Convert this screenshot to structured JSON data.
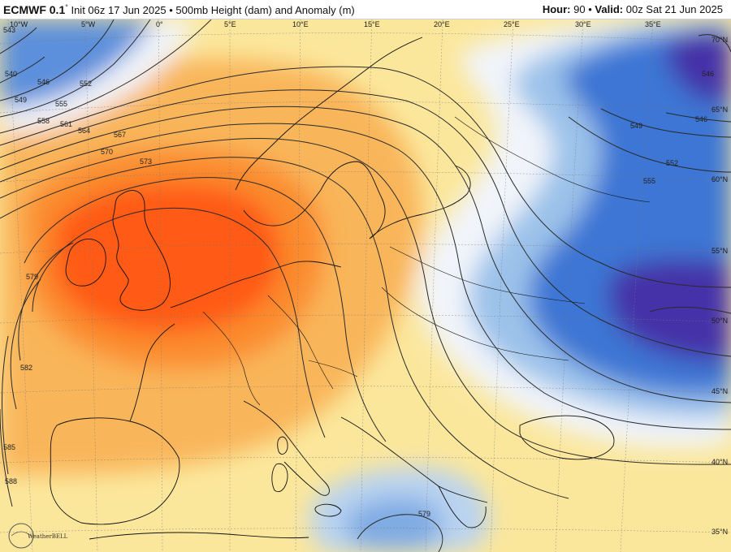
{
  "header": {
    "model": "ECMWF 0.1",
    "degree": "°",
    "init": "Init 06z 17 Jun 2025",
    "sep": "•",
    "field": "500mb Height (dam) and Anomaly (m)",
    "hour_label": "Hour:",
    "hour_value": "90",
    "valid_label": "Valid:",
    "valid_value": "00z Sat 21 Jun 2025"
  },
  "axes": {
    "longitude_labels": [
      "10°W",
      "5°W",
      "0°",
      "5°E",
      "10°E",
      "15°E",
      "20°E",
      "25°E",
      "30°E",
      "35°E"
    ],
    "latitude_labels": [
      "70°N",
      "65°N",
      "60°N",
      "55°N",
      "50°N",
      "45°N",
      "40°N",
      "35°N"
    ]
  },
  "contours": {
    "unit": "dam",
    "labels": [
      "540",
      "543",
      "546",
      "549",
      "552",
      "555",
      "558",
      "561",
      "564",
      "567",
      "570",
      "573",
      "576",
      "579",
      "582",
      "585",
      "588"
    ]
  },
  "logo": {
    "text": "WeatherBELL"
  },
  "colors": {
    "strong_positive": "#ff5a14",
    "positive": "#f9a23c",
    "weak_positive": "#fbe79c",
    "neutral": "#f1f4fa",
    "weak_negative": "#9cc2ea",
    "negative": "#3e76d4",
    "strong_negative": "#4433a8",
    "coast": "#111111",
    "contour": "#2a2a2a"
  }
}
